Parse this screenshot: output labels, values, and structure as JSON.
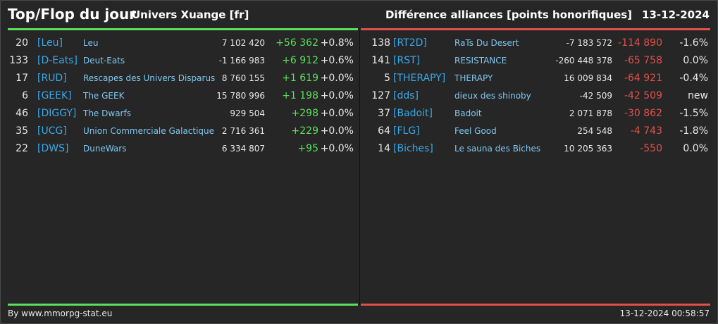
{
  "header": {
    "title": "Top/Flop du jour",
    "universe": "Univers Xuange [fr]",
    "subtitle": "Différence alliances [points honorifiques]",
    "date": "13-12-2024"
  },
  "colors": {
    "up": "#5ae05a",
    "down": "#e0504a",
    "tag": "#3aa8e8",
    "name": "#7ec8f0"
  },
  "top": [
    {
      "rank": "20",
      "tag": "[Leu]",
      "name": "Leu",
      "points": "7 102 420",
      "diff": "+56 362",
      "pct": "+0.8%"
    },
    {
      "rank": "133",
      "tag": "[D-Eats]",
      "name": "Deut-Eats",
      "points": "-1 166 983",
      "diff": "+6 912",
      "pct": "+0.6%"
    },
    {
      "rank": "17",
      "tag": "[RUD]",
      "name": "Rescapes des Univers Disparus",
      "points": "8 760 155",
      "diff": "+1 619",
      "pct": "+0.0%"
    },
    {
      "rank": "6",
      "tag": "[GEEK]",
      "name": "The GEEK",
      "points": "15 780 996",
      "diff": "+1 198",
      "pct": "+0.0%"
    },
    {
      "rank": "46",
      "tag": "[DIGGY]",
      "name": "The Dwarfs",
      "points": "929 504",
      "diff": "+298",
      "pct": "+0.0%"
    },
    {
      "rank": "35",
      "tag": "[UCG]",
      "name": "Union Commerciale Galactique",
      "points": "2 716 361",
      "diff": "+229",
      "pct": "+0.0%"
    },
    {
      "rank": "22",
      "tag": "[DWS]",
      "name": "DuneWars",
      "points": "6 334 807",
      "diff": "+95",
      "pct": "+0.0%"
    }
  ],
  "flop": [
    {
      "rank": "138",
      "tag": "[RT2D]",
      "name": "RaTs Du Desert",
      "points": "-7 183 572",
      "diff": "-114 890",
      "pct": "-1.6%"
    },
    {
      "rank": "141",
      "tag": "[RST]",
      "name": "RESISTANCE",
      "points": "-260 448 378",
      "diff": "-65 758",
      "pct": "0.0%"
    },
    {
      "rank": "5",
      "tag": "[THERAPY]",
      "name": "THERAPY",
      "points": "16 009 834",
      "diff": "-64 921",
      "pct": "-0.4%"
    },
    {
      "rank": "127",
      "tag": "[dds]",
      "name": "dieux des shinoby",
      "points": "-42 509",
      "diff": "-42 509",
      "pct": "new"
    },
    {
      "rank": "37",
      "tag": "[Badoit]",
      "name": "Badoit",
      "points": "2 071 878",
      "diff": "-30 862",
      "pct": "-1.5%"
    },
    {
      "rank": "64",
      "tag": "[FLG]",
      "name": "Feel Good",
      "points": "254 548",
      "diff": "-4 743",
      "pct": "-1.8%"
    },
    {
      "rank": "14",
      "tag": "[Biches]",
      "name": "Le sauna des Biches",
      "points": "10 205 363",
      "diff": "-550",
      "pct": "0.0%"
    }
  ],
  "footer": {
    "source": "By www.mmorpg-stat.eu",
    "timestamp": "13-12-2024 00:58:57"
  }
}
